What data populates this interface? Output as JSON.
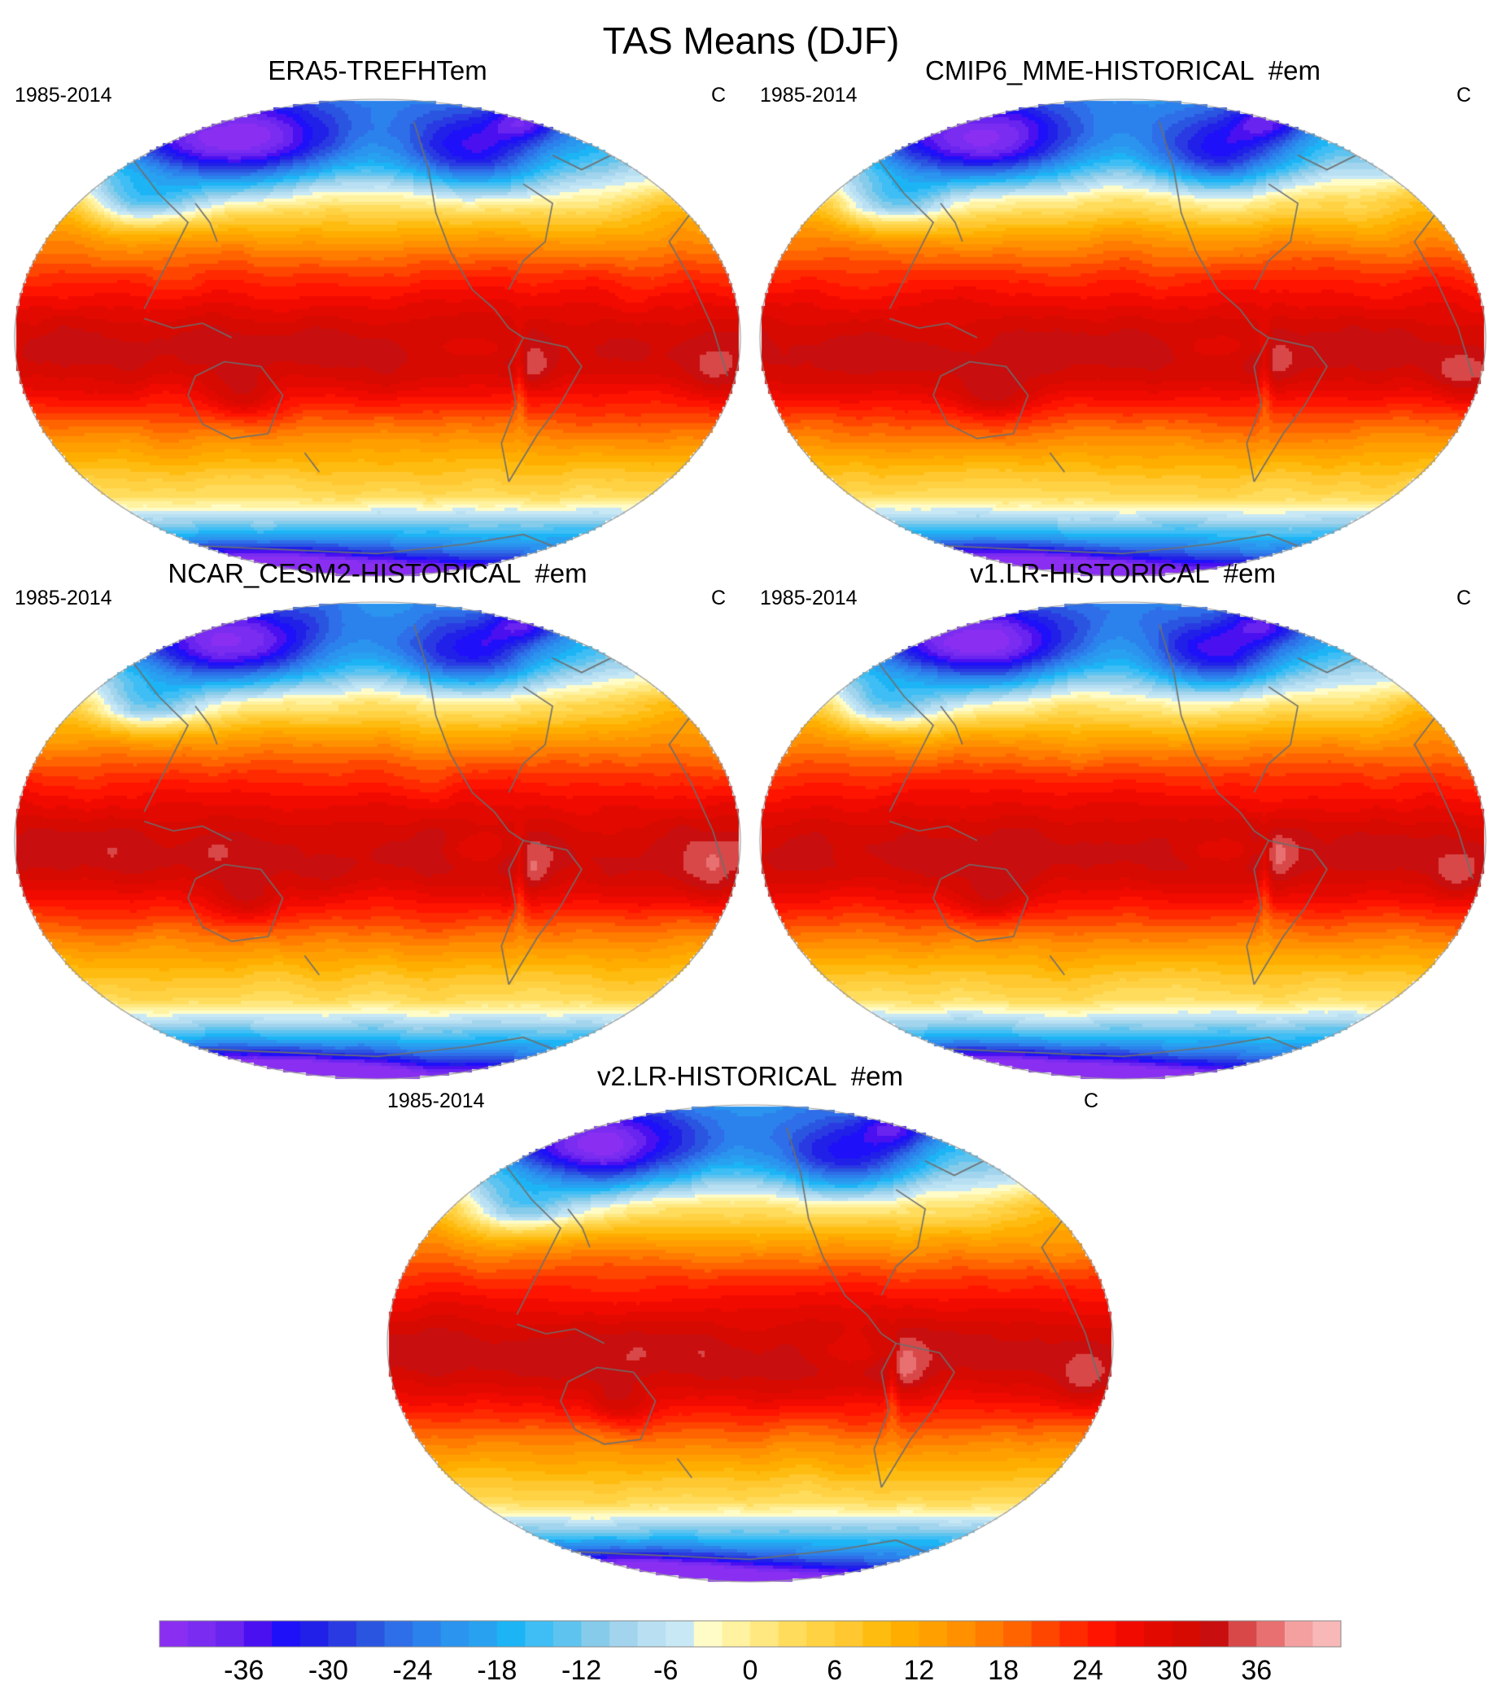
{
  "figure": {
    "title": "TAS Means (DJF)"
  },
  "panels": [
    {
      "title": "ERA5-TREFHTem",
      "period": "1985-2014",
      "units": "C",
      "variant": 0
    },
    {
      "title": "CMIP6_MME-HISTORICAL  #em",
      "period": "1985-2014",
      "units": "C",
      "variant": 1
    },
    {
      "title": "NCAR_CESM2-HISTORICAL  #em",
      "period": "1985-2014",
      "units": "C",
      "variant": 2
    },
    {
      "title": "v1.LR-HISTORICAL  #em",
      "period": "1985-2014",
      "units": "C",
      "variant": 3
    },
    {
      "title": "v2.LR-HISTORICAL  #em",
      "period": "1985-2014",
      "units": "C",
      "variant": 4
    }
  ],
  "colorbar": {
    "min": -42,
    "max": 42,
    "step": 2,
    "tick_labels": [
      "-36",
      "-30",
      "-24",
      "-18",
      "-12",
      "-6",
      "0",
      "6",
      "12",
      "18",
      "24",
      "30",
      "36"
    ],
    "tick_values": [
      -36,
      -30,
      -24,
      -18,
      -12,
      -6,
      0,
      6,
      12,
      18,
      24,
      30,
      36
    ],
    "colors": [
      "#8a2ef2",
      "#7a2cf0",
      "#6a24f0",
      "#4a10f0",
      "#1e10f8",
      "#2020e8",
      "#2a3ae2",
      "#2a55e0",
      "#2e6ee8",
      "#2c82ec",
      "#2a94ee",
      "#28a2f0",
      "#1cb4f5",
      "#3ebef5",
      "#5ec4ef",
      "#86ccea",
      "#a2d4ee",
      "#b8e0f2",
      "#c8e8f5",
      "#fffcc8",
      "#fff2a0",
      "#ffe880",
      "#ffdc5c",
      "#ffd244",
      "#ffc830",
      "#ffbc10",
      "#ffae00",
      "#ffa000",
      "#ff9000",
      "#ff7c00",
      "#ff6400",
      "#ff4600",
      "#ff2a00",
      "#ff1400",
      "#f00a00",
      "#e20a00",
      "#d60a00",
      "#c80e0e",
      "#d84848",
      "#e87070",
      "#f4a0a0",
      "#f8b8b8"
    ],
    "outline_color": "#888888"
  },
  "map_style": {
    "coast_color": "#6e6e6e",
    "border_color": "#7a7a7a"
  }
}
